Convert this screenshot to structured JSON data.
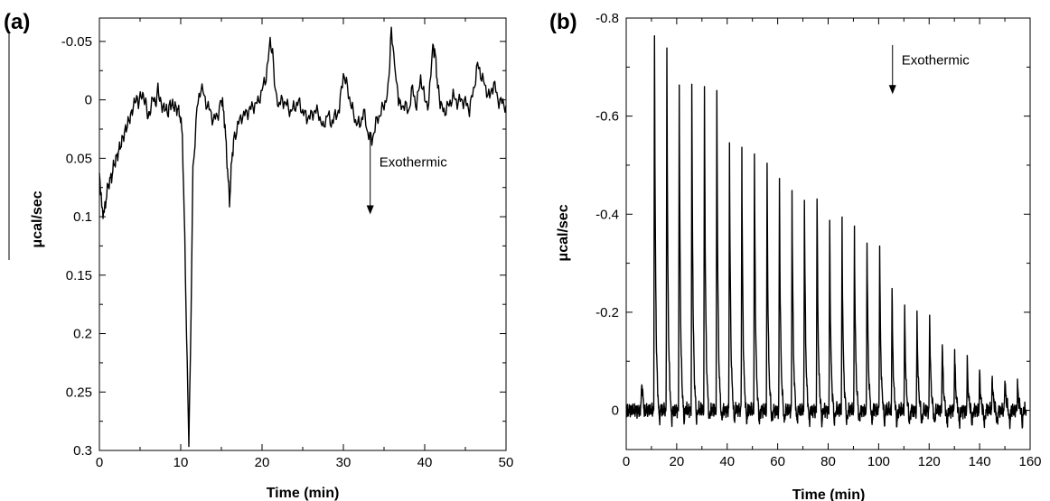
{
  "chart_data": [
    {
      "type": "line",
      "panel_label": "(a)",
      "xlabel": "Time (min)",
      "ylabel": "μcal/sec",
      "xlim": [
        0,
        50
      ],
      "ylim": [
        -0.07,
        0.3
      ],
      "y_inverted": true,
      "xticks": [
        0,
        10,
        20,
        30,
        40,
        50
      ],
      "xtick_labels": [
        "0",
        "10",
        "20",
        "30",
        "40",
        "50"
      ],
      "yticks": [
        -0.05,
        0,
        0.05,
        0.1,
        0.15,
        0.2,
        0.25,
        0.3
      ],
      "ytick_labels": [
        "-0.05",
        "0",
        "0.05",
        "0.1",
        "0.15",
        "0.2",
        "0.25",
        "0.3"
      ],
      "grid": false,
      "annotation": {
        "text": "Exothermic",
        "x": 33.3,
        "y": 0.03,
        "arrow_to_y": 0.098
      },
      "series": [
        {
          "x": [
            0,
            0.3,
            0.6,
            0.9,
            1.2,
            1.5,
            1.8,
            2.1,
            2.4,
            2.7,
            3.0,
            3.3,
            3.6,
            3.9,
            4.2,
            4.5,
            4.8,
            5.1,
            5.4,
            5.7,
            6.0,
            6.3,
            6.6,
            6.9,
            7.2,
            7.5,
            7.8,
            8.1,
            8.4,
            8.7,
            9.0,
            9.3,
            9.6,
            9.9,
            10.2,
            10.5,
            10.8,
            11.0,
            11.2,
            11.5,
            12.0,
            12.5,
            13.0,
            13.5,
            14.0,
            14.5,
            15.0,
            15.3,
            15.6,
            15.8,
            16.0,
            16.2,
            16.5,
            17.0,
            17.5,
            18.0,
            18.5,
            19.0,
            19.5,
            20.0,
            20.5,
            21.0,
            21.3,
            21.6,
            22.0,
            22.5,
            23.0,
            23.5,
            24.0,
            24.5,
            25.0,
            25.5,
            26.0,
            26.5,
            27.0,
            27.5,
            28.0,
            28.5,
            29.0,
            29.5,
            30.0,
            30.5,
            31.0,
            31.5,
            32.0,
            32.5,
            33.0,
            33.5,
            34.0,
            34.5,
            35.0,
            35.5,
            35.9,
            36.3,
            36.7,
            37.0,
            37.5,
            38.0,
            38.5,
            39.0,
            39.5,
            40.0,
            40.5,
            41.0,
            41.3,
            41.6,
            42.0,
            42.5,
            43.0,
            43.5,
            44.0,
            44.5,
            45.0,
            45.5,
            46.0,
            46.5,
            47.0,
            47.5,
            48.0,
            48.5,
            49.0,
            49.5,
            50.0
          ],
          "values": [
            0.06,
            0.093,
            0.097,
            0.08,
            0.07,
            0.066,
            0.055,
            0.05,
            0.043,
            0.037,
            0.03,
            0.024,
            0.018,
            0.013,
            0.005,
            -0.002,
            0.003,
            -0.005,
            -0.002,
            0.002,
            0.016,
            0.008,
            -0.004,
            0.005,
            -0.01,
            0.002,
            0.007,
            0.006,
            0.012,
            0.003,
            0.005,
            0.006,
            0.008,
            0.012,
            0.03,
            0.12,
            0.23,
            0.29,
            0.22,
            0.06,
            0.008,
            -0.012,
            0.0,
            0.008,
            0.017,
            0.014,
            0.0,
            0.01,
            0.04,
            0.065,
            0.088,
            0.06,
            0.035,
            0.022,
            0.014,
            0.012,
            0.008,
            0.005,
            0.002,
            -0.008,
            -0.02,
            -0.049,
            -0.04,
            -0.01,
            0.005,
            0.0,
            0.004,
            0.01,
            0.006,
            0.002,
            0.01,
            0.015,
            0.014,
            0.009,
            0.012,
            0.025,
            0.012,
            0.02,
            0.014,
            0.008,
            -0.023,
            -0.01,
            0.006,
            0.018,
            0.022,
            0.01,
            0.028,
            0.035,
            0.02,
            0.012,
            0.005,
            -0.008,
            -0.06,
            -0.03,
            -0.005,
            0.006,
            0.004,
            0.01,
            -0.01,
            0.006,
            -0.02,
            0.0,
            0.004,
            -0.048,
            -0.038,
            -0.012,
            0.006,
            0.01,
            0.004,
            -0.003,
            0.002,
            0.0,
            0.002,
            0.008,
            -0.008,
            -0.03,
            -0.02,
            -0.01,
            -0.002,
            -0.015,
            0.0,
            0.002,
            0.005
          ]
        }
      ]
    },
    {
      "type": "line",
      "panel_label": "(b)",
      "xlabel": "Time (min)",
      "ylabel": "μcal/sec",
      "xlim": [
        0,
        160
      ],
      "ylim": [
        -0.8,
        0.08
      ],
      "xticks": [
        0,
        20,
        40,
        60,
        80,
        100,
        120,
        140,
        160
      ],
      "xtick_labels": [
        "0",
        "20",
        "40",
        "60",
        "80",
        "100",
        "120",
        "140",
        "160"
      ],
      "yticks": [
        -0.8,
        -0.6,
        -0.4,
        -0.2,
        0
      ],
      "ytick_labels": [
        "-0.8",
        "-0.6",
        "-0.4",
        "-0.2",
        "0"
      ],
      "grid": false,
      "annotation": {
        "text": "Exothermic",
        "x": 105.5,
        "y": -0.745,
        "arrow_to_y": -0.645
      },
      "baseline": 0,
      "injection_times": [
        11.2,
        16.1,
        21.0,
        26.0,
        31.0,
        35.9,
        40.9,
        45.8,
        50.8,
        55.8,
        60.7,
        65.7,
        70.6,
        75.6,
        80.6,
        85.5,
        90.4,
        95.4,
        100.4,
        105.3,
        110.3,
        115.2,
        120.2,
        125.2,
        130.1,
        135.1,
        140.0,
        145.0,
        150.0,
        155.0
      ],
      "peak_values": [
        -0.78,
        -0.745,
        -0.675,
        -0.66,
        -0.66,
        -0.655,
        -0.555,
        -0.535,
        -0.515,
        -0.495,
        -0.47,
        -0.45,
        -0.44,
        -0.44,
        -0.38,
        -0.38,
        -0.375,
        -0.35,
        -0.33,
        -0.25,
        -0.215,
        -0.195,
        -0.195,
        -0.145,
        -0.125,
        -0.1,
        -0.078,
        -0.07,
        -0.068,
        -0.055
      ]
    }
  ]
}
